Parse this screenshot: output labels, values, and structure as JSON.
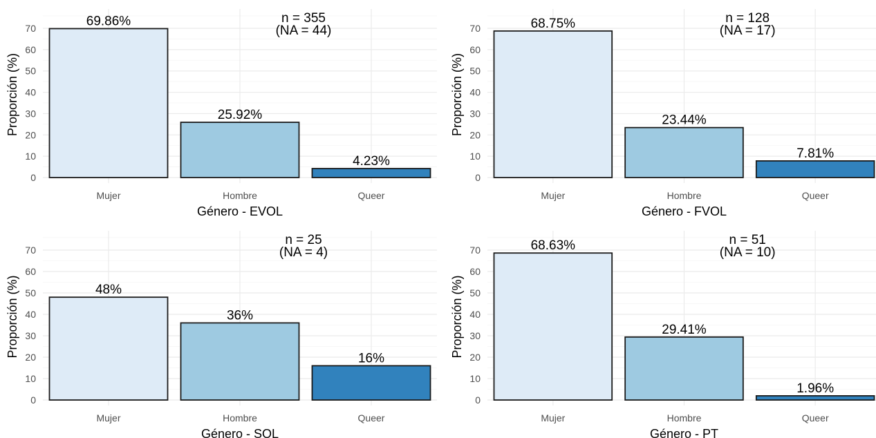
{
  "chart_data": [
    {
      "type": "bar",
      "xlabel": "Género - EVOL",
      "ylabel": "Proporción (%)",
      "categories": [
        "Mujer",
        "Hombre",
        "Queer"
      ],
      "values": [
        69.86,
        25.92,
        4.23
      ],
      "value_labels": [
        "69.86%",
        "25.92%",
        "4.23%"
      ],
      "colors": [
        "#deebf7",
        "#9ecae1",
        "#3182bd"
      ],
      "ylim": [
        0,
        70
      ],
      "yticks": [
        0,
        10,
        20,
        30,
        40,
        50,
        60,
        70
      ],
      "annotation": [
        "n = 355",
        "(NA = 44)"
      ],
      "grid": true
    },
    {
      "type": "bar",
      "xlabel": "Género - FVOL",
      "ylabel": "Proporción (%)",
      "categories": [
        "Mujer",
        "Hombre",
        "Queer"
      ],
      "values": [
        68.75,
        23.44,
        7.81
      ],
      "value_labels": [
        "68.75%",
        "23.44%",
        "7.81%"
      ],
      "colors": [
        "#deebf7",
        "#9ecae1",
        "#3182bd"
      ],
      "ylim": [
        0,
        70
      ],
      "yticks": [
        0,
        10,
        20,
        30,
        40,
        50,
        60,
        70
      ],
      "annotation": [
        "n = 128",
        "(NA = 17)"
      ],
      "grid": true
    },
    {
      "type": "bar",
      "xlabel": "Género - SOL",
      "ylabel": "Proporción (%)",
      "categories": [
        "Mujer",
        "Hombre",
        "Queer"
      ],
      "values": [
        48,
        36,
        16
      ],
      "value_labels": [
        "48%",
        "36%",
        "16%"
      ],
      "colors": [
        "#deebf7",
        "#9ecae1",
        "#3182bd"
      ],
      "ylim": [
        0,
        70
      ],
      "yticks": [
        0,
        10,
        20,
        30,
        40,
        50,
        60,
        70
      ],
      "annotation": [
        "n = 25",
        "(NA = 4)"
      ],
      "grid": true
    },
    {
      "type": "bar",
      "xlabel": "Género - PT",
      "ylabel": "Proporción (%)",
      "categories": [
        "Mujer",
        "Hombre",
        "Queer"
      ],
      "values": [
        68.63,
        29.41,
        1.96
      ],
      "value_labels": [
        "68.63%",
        "29.41%",
        "1.96%"
      ],
      "colors": [
        "#deebf7",
        "#9ecae1",
        "#3182bd"
      ],
      "ylim": [
        0,
        70
      ],
      "yticks": [
        0,
        10,
        20,
        30,
        40,
        50,
        60,
        70
      ],
      "annotation": [
        "n = 51",
        "(NA = 10)"
      ],
      "grid": true
    }
  ]
}
